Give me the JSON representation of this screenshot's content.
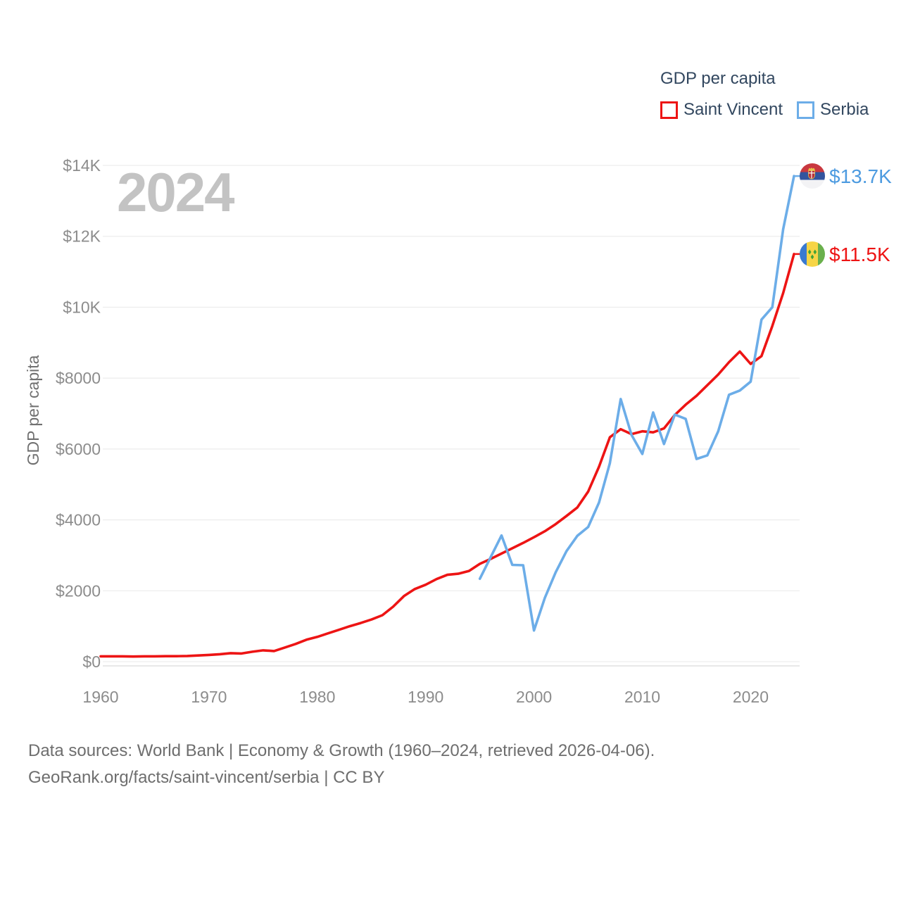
{
  "page": {
    "watermark": "2024",
    "footer_line1": "Data sources: World Bank | Economy & Growth (1960–2024, retrieved 2026-04-06).",
    "footer_line2": "GeoRank.org/facts/saint-vincent/serbia | CC BY"
  },
  "legend": {
    "title": "GDP per capita",
    "items": [
      {
        "label": "Saint Vincent",
        "color": "#ed1414"
      },
      {
        "label": "Serbia",
        "color": "#6cade8"
      }
    ]
  },
  "end_labels": [
    {
      "series": "Serbia",
      "text": "$13.7K",
      "color": "#4d9be0",
      "flag": "serbia-flag"
    },
    {
      "series": "Saint Vincent",
      "text": "$11.5K",
      "color": "#ed1414",
      "flag": "saint-vincent-flag"
    }
  ],
  "chart_data": {
    "type": "line",
    "title": "GDP per capita",
    "xlabel": "",
    "ylabel": "GDP per capita",
    "xlim": [
      1960,
      2024
    ],
    "ylim": [
      0,
      14000
    ],
    "grid": "horizontal",
    "legend_position": "top-right",
    "x_ticks": [
      1960,
      1970,
      1980,
      1990,
      2000,
      2010,
      2020
    ],
    "y_ticks": [
      {
        "value": 0,
        "label": "$0"
      },
      {
        "value": 2000,
        "label": "$2000"
      },
      {
        "value": 4000,
        "label": "$4000"
      },
      {
        "value": 6000,
        "label": "$6000"
      },
      {
        "value": 8000,
        "label": "$8000"
      },
      {
        "value": 10000,
        "label": "$10K"
      },
      {
        "value": 12000,
        "label": "$12K"
      },
      {
        "value": 14000,
        "label": "$14K"
      }
    ],
    "series": [
      {
        "name": "Saint Vincent",
        "color": "#ed1414",
        "start_year": 1960,
        "end_label": "$11.5K",
        "end_value": 11500,
        "values": [
          150,
          150,
          150,
          145,
          150,
          150,
          155,
          155,
          160,
          175,
          190,
          210,
          240,
          230,
          280,
          320,
          300,
          400,
          500,
          620,
          700,
          800,
          900,
          1000,
          1090,
          1190,
          1310,
          1550,
          1850,
          2050,
          2170,
          2330,
          2450,
          2480,
          2560,
          2760,
          2900,
          3050,
          3200,
          3350,
          3510,
          3680,
          3880,
          4110,
          4350,
          4800,
          5500,
          6330,
          6560,
          6420,
          6500,
          6470,
          6580,
          6960,
          7250,
          7500,
          7800,
          8100,
          8450,
          8750,
          8400,
          8620,
          9470,
          10400,
          11500
        ]
      },
      {
        "name": "Serbia",
        "color": "#6cade8",
        "start_year": 1995,
        "end_label": "$13.7K",
        "end_value": 13700,
        "values": [
          2340,
          2950,
          3560,
          2730,
          2720,
          880,
          1800,
          2520,
          3120,
          3550,
          3800,
          4490,
          5600,
          7410,
          6400,
          5860,
          7030,
          6140,
          6970,
          6850,
          5720,
          5820,
          6500,
          7530,
          7650,
          7900,
          9650,
          10000,
          12200,
          13700
        ]
      }
    ]
  }
}
